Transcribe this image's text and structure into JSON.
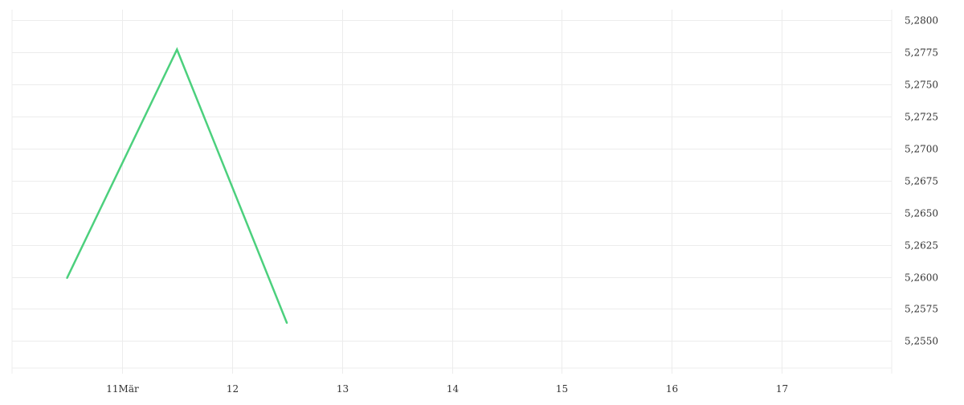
{
  "chart_data": {
    "type": "line",
    "title": "",
    "xlabel": "",
    "ylabel": "",
    "x_tick_labels": [
      {
        "day": 11,
        "label": "11Mär"
      },
      {
        "day": 12,
        "label": "12"
      },
      {
        "day": 13,
        "label": "13"
      },
      {
        "day": 14,
        "label": "14"
      },
      {
        "day": 15,
        "label": "15"
      },
      {
        "day": 16,
        "label": "16"
      },
      {
        "day": 17,
        "label": "17"
      }
    ],
    "xlim_days_of_march": [
      10,
      18
    ],
    "y_ticks": [
      5.255,
      5.2575,
      5.26,
      5.2625,
      5.265,
      5.2675,
      5.27,
      5.2725,
      5.275,
      5.2775,
      5.28
    ],
    "y_tick_labels": [
      "5,2550",
      "5,2575",
      "5,2600",
      "5,2625",
      "5,2650",
      "5,2675",
      "5,2700",
      "5,2725",
      "5,2750",
      "5,2775",
      "5,2800"
    ],
    "ylim": [
      5.2529,
      5.2808
    ],
    "y_axis_side": "right",
    "grid": true,
    "series": [
      {
        "color": "#4cd07d",
        "points": [
          {
            "x": "Mar 10 12:00",
            "day": 10.5,
            "y": 5.2599
          },
          {
            "x": "Mar 11 12:00",
            "day": 11.5,
            "y": 5.2777
          },
          {
            "x": "Mar 12 12:00",
            "day": 12.5,
            "y": 5.2564
          }
        ]
      }
    ]
  }
}
